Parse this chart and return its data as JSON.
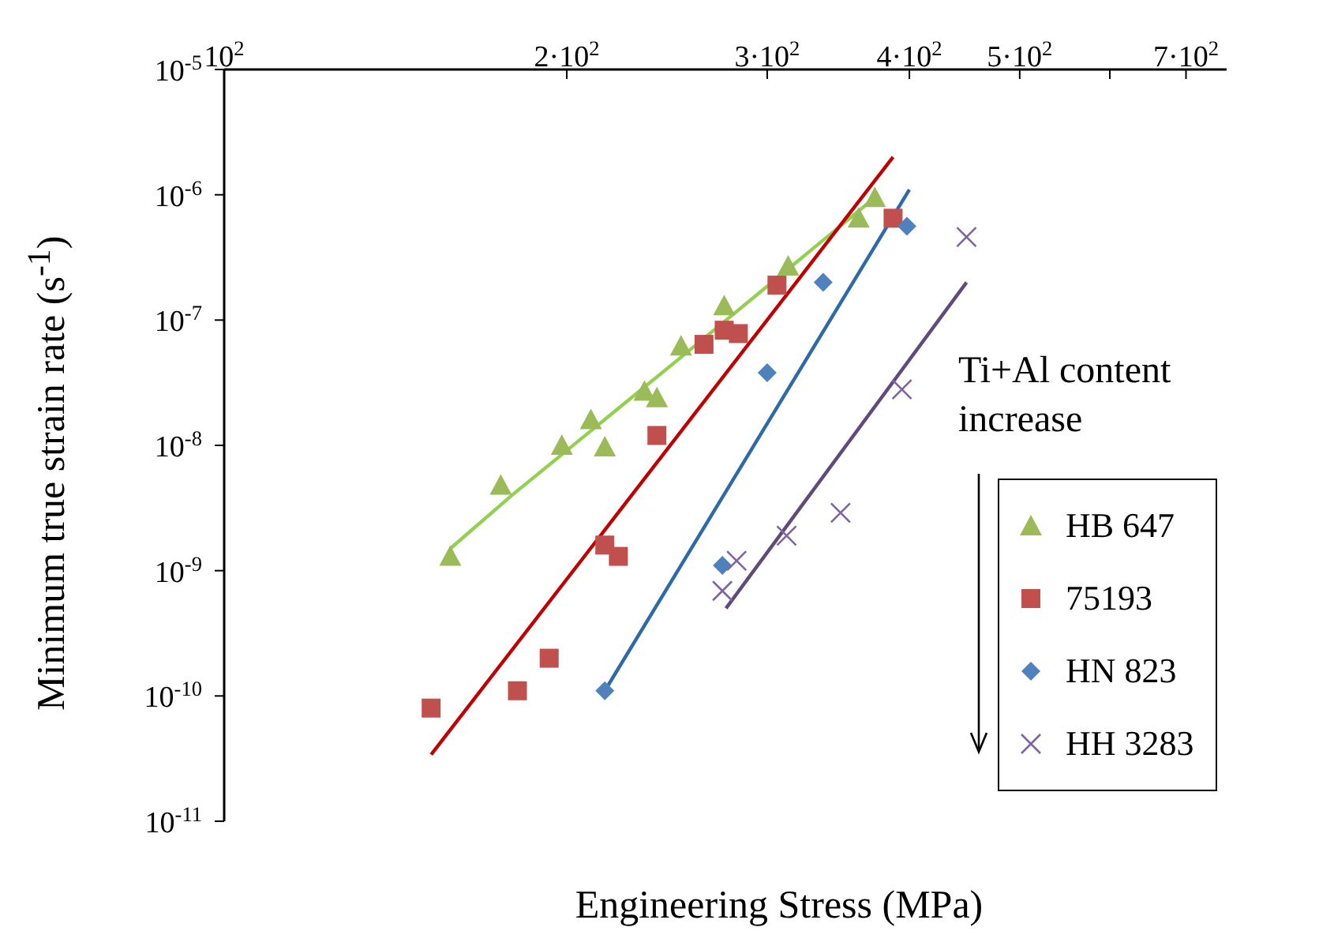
{
  "chart_data": {
    "type": "scatter",
    "xlabel": "Engineering Stress (MPa)",
    "ylabel": "Minimum true strain rate (s$^{-1}$)",
    "log": "xy",
    "xlim": [
      100,
      760
    ],
    "ylim": [
      1e-11,
      1e-05
    ],
    "xticks": [
      {
        "value": 100,
        "label": "10$^{2}$"
      },
      {
        "value": 200,
        "label": "2·10$^{2}$"
      },
      {
        "value": 300,
        "label": "3·10$^{2}$"
      },
      {
        "value": 400,
        "label": "4·10$^{2}$"
      },
      {
        "value": 500,
        "label": "5·10$^{2}$"
      },
      {
        "value": 600,
        "label": null
      },
      {
        "value": 700,
        "label": "7·10$^{2}$"
      }
    ],
    "yticks": [
      {
        "value": 1e-11,
        "label": "10$^{-11}$"
      },
      {
        "value": 1e-10,
        "label": "10$^{-10}$"
      },
      {
        "value": 1e-09,
        "label": "10$^{-9}$"
      },
      {
        "value": 1e-08,
        "label": "10$^{-8}$"
      },
      {
        "value": 1e-07,
        "label": "10$^{-7}$"
      },
      {
        "value": 1e-06,
        "label": "10$^{-6}$"
      },
      {
        "value": 1e-05,
        "label": "10$^{-5}$"
      }
    ],
    "legend": "bottom right",
    "annotations": [
      "Ti+Al content increase"
    ],
    "series": [
      {
        "name": "HB 647",
        "marker": "triangle",
        "color": "#9bbb59",
        "x": [
          158,
          175,
          198,
          210,
          216,
          234,
          240,
          252,
          275,
          313,
          361,
          373
        ],
        "values": [
          1.3e-09,
          4.8e-09,
          1e-08,
          1.6e-08,
          9.7e-09,
          2.7e-08,
          2.4e-08,
          6.2e-08,
          1.3e-07,
          2.7e-07,
          6.5e-07,
          9.5e-07
        ]
      },
      {
        "name": "75193",
        "marker": "square",
        "color": "#c0504d",
        "x": [
          152,
          181,
          193,
          216,
          222,
          240,
          264,
          275,
          283,
          306,
          387
        ],
        "values": [
          8e-11,
          1.1e-10,
          2e-10,
          1.6e-09,
          1.3e-09,
          1.2e-08,
          6.4e-08,
          8.3e-08,
          7.8e-08,
          1.9e-07,
          6.5e-07
        ]
      },
      {
        "name": "HN 823",
        "marker": "diamond",
        "color": "#4f81bd",
        "x": [
          216,
          274,
          300,
          336,
          398
        ],
        "values": [
          1.1e-10,
          1.1e-09,
          3.8e-08,
          2e-07,
          5.6e-07
        ]
      },
      {
        "name": "HH 3283",
        "marker": "cross",
        "color": "#8064a2",
        "x": [
          274,
          282,
          312,
          348,
          394,
          449
        ],
        "values": [
          6.9e-10,
          1.2e-09,
          1.9e-09,
          2.9e-09,
          2.8e-08,
          4.6e-07
        ]
      },
      {
        "type": "line",
        "color": "#92d050",
        "x": [
          158,
          179,
          253,
          373
        ],
        "values": [
          1.5e-09,
          4e-09,
          5.2e-08,
          9.5e-07
        ]
      },
      {
        "type": "line",
        "color": "#c00000",
        "x": [
          152,
          387
        ],
        "values": [
          3.4e-11,
          2e-06
        ]
      },
      {
        "type": "line",
        "color": "#2e6aa8",
        "x": [
          216,
          400
        ],
        "values": [
          1.1e-10,
          1.1e-06
        ]
      },
      {
        "type": "line",
        "color": "#604a7b",
        "x": [
          276,
          449
        ],
        "values": [
          5e-10,
          2e-07
        ]
      }
    ]
  }
}
